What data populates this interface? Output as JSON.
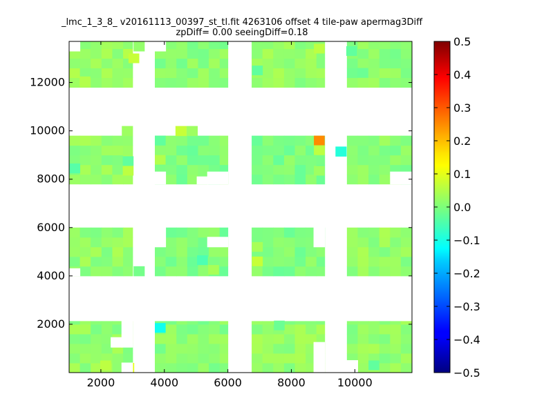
{
  "chart_data": {
    "type": "heatmap",
    "title": "_lmc_1_3_8_ v20161113_00397_st_tl.fit 4263106 offset 4 tile-paw apermag3Diff",
    "subtitle": "zpDiff= 0.00 seeingDiff=0.18",
    "xlim": [
      1000,
      11800
    ],
    "ylim": [
      0,
      13700
    ],
    "x_ticks": [
      2000,
      4000,
      6000,
      8000,
      10000
    ],
    "y_ticks": [
      2000,
      4000,
      6000,
      8000,
      10000,
      12000
    ],
    "colorbar": {
      "vmin": -0.5,
      "vmax": 0.5,
      "colormap": "jet",
      "ticks": [
        "0.5",
        "0.4",
        "0.3",
        "0.2",
        "0.1",
        "0.0",
        "−0.1",
        "−0.2",
        "−0.3",
        "−0.4",
        "−0.5"
      ]
    },
    "cell_size": [
      340,
      400
    ],
    "blocks": [
      {
        "x": [
          1000,
          3000
        ],
        "y": [
          0,
          2130
        ],
        "value": 0.02
      },
      {
        "x": [
          3700,
          6000
        ],
        "y": [
          0,
          2130
        ],
        "value": 0.01
      },
      {
        "x": [
          6750,
          9050
        ],
        "y": [
          0,
          2130
        ],
        "value": 0.02
      },
      {
        "x": [
          9750,
          11800
        ],
        "y": [
          0,
          2130
        ],
        "value": 0.02
      },
      {
        "x": [
          1000,
          3000
        ],
        "y": [
          4000,
          6000
        ],
        "value": 0.02
      },
      {
        "x": [
          3700,
          6000
        ],
        "y": [
          4000,
          6000
        ],
        "value": 0.0
      },
      {
        "x": [
          6750,
          9050
        ],
        "y": [
          4000,
          6000
        ],
        "value": 0.0
      },
      {
        "x": [
          9750,
          11800
        ],
        "y": [
          4000,
          6000
        ],
        "value": 0.02
      },
      {
        "x": [
          1000,
          3000
        ],
        "y": [
          7800,
          9800
        ],
        "value": 0.02
      },
      {
        "x": [
          3700,
          6000
        ],
        "y": [
          7800,
          9800
        ],
        "value": 0.0
      },
      {
        "x": [
          6750,
          9050
        ],
        "y": [
          7800,
          9800
        ],
        "value": 0.0
      },
      {
        "x": [
          9750,
          11800
        ],
        "y": [
          7800,
          9800
        ],
        "value": 0.01
      },
      {
        "x": [
          1000,
          3000
        ],
        "y": [
          11800,
          13700
        ],
        "value": 0.03
      },
      {
        "x": [
          3700,
          6000
        ],
        "y": [
          11800,
          13700
        ],
        "value": 0.01
      },
      {
        "x": [
          6750,
          9050
        ],
        "y": [
          11800,
          13700
        ],
        "value": 0.02
      },
      {
        "x": [
          9750,
          11800
        ],
        "y": [
          11800,
          13700
        ],
        "value": 0.01
      }
    ],
    "extra_cells": [
      {
        "x": 2660,
        "y": 9800,
        "value": 0.03
      },
      {
        "x": 4350,
        "y": 9800,
        "value": 0.07
      },
      {
        "x": 4700,
        "y": 9800,
        "value": 0.03
      },
      {
        "x": 3030,
        "y": 4000,
        "value": -0.01
      },
      {
        "x": 3030,
        "y": 13300,
        "value": 0.02
      },
      {
        "x": 9390,
        "y": 8950,
        "value": -0.09
      }
    ],
    "holes": [
      {
        "x": 2660,
        "y": 0,
        "w": 340,
        "h": 400
      },
      {
        "x": 2320,
        "y": 1050,
        "w": 340,
        "h": 400
      },
      {
        "x": 2660,
        "y": 1050,
        "w": 340,
        "h": 1080
      },
      {
        "x": 8710,
        "y": 0,
        "w": 340,
        "h": 1250
      },
      {
        "x": 9750,
        "y": 0,
        "w": 340,
        "h": 500
      },
      {
        "x": 1000,
        "y": 4000,
        "w": 340,
        "h": 300
      },
      {
        "x": 3700,
        "y": 5200,
        "w": 340,
        "h": 800
      },
      {
        "x": 5360,
        "y": 5200,
        "w": 640,
        "h": 400
      },
      {
        "x": 8710,
        "y": 5200,
        "w": 340,
        "h": 800
      },
      {
        "x": 3700,
        "y": 7800,
        "w": 340,
        "h": 500
      },
      {
        "x": 5030,
        "y": 7800,
        "w": 340,
        "h": 300
      },
      {
        "x": 5360,
        "y": 7800,
        "w": 640,
        "h": 500
      },
      {
        "x": 11120,
        "y": 7800,
        "w": 680,
        "h": 500
      },
      {
        "x": 1000,
        "y": 13300,
        "w": 340,
        "h": 400
      },
      {
        "x": 3700,
        "y": 13300,
        "w": 340,
        "h": 400
      }
    ],
    "notable_cells": [
      {
        "x": 8880,
        "y": 9600,
        "value": 0.24
      },
      {
        "x": 8880,
        "y": 9200,
        "value": 0.06
      },
      {
        "x": 3870,
        "y": 1850,
        "value": -0.11
      },
      {
        "x": 2880,
        "y": 200,
        "value": 0.1
      },
      {
        "x": 2150,
        "y": 300,
        "value": 0.06
      },
      {
        "x": 3040,
        "y": 13000,
        "value": 0.07
      },
      {
        "x": 1500,
        "y": 12050,
        "value": 0.05
      },
      {
        "x": 8880,
        "y": 13400,
        "value": 0.06
      },
      {
        "x": 1180,
        "y": 8450,
        "value": -0.04
      },
      {
        "x": 2860,
        "y": 8750,
        "value": -0.03
      },
      {
        "x": 2860,
        "y": 8350,
        "value": 0.06
      },
      {
        "x": 3870,
        "y": 8800,
        "value": 0.05
      },
      {
        "x": 3870,
        "y": 9600,
        "value": -0.03
      },
      {
        "x": 6930,
        "y": 4600,
        "value": 0.07
      },
      {
        "x": 6930,
        "y": 5200,
        "value": 0.04
      },
      {
        "x": 5200,
        "y": 4650,
        "value": -0.05
      },
      {
        "x": 5550,
        "y": 4250,
        "value": 0.04
      },
      {
        "x": 6930,
        "y": 12500,
        "value": -0.03
      },
      {
        "x": 7620,
        "y": 1950,
        "value": -0.02
      },
      {
        "x": 10600,
        "y": 300,
        "value": -0.03
      },
      {
        "x": 8880,
        "y": 8350,
        "value": 0.03
      },
      {
        "x": 9900,
        "y": 13300,
        "value": -0.03
      },
      {
        "x": 10250,
        "y": 12400,
        "value": -0.02
      }
    ]
  }
}
